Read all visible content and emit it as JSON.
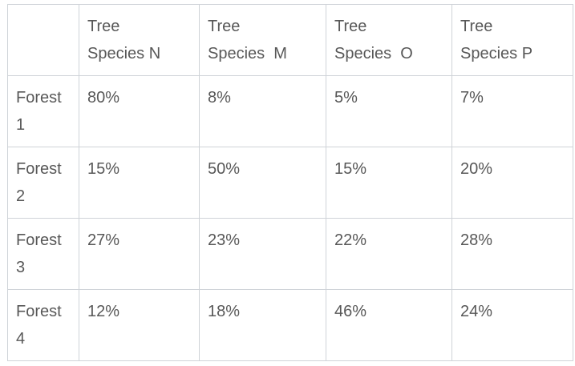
{
  "table": {
    "corner": "",
    "headers": [
      {
        "line1": "Tree",
        "line2": "Species N"
      },
      {
        "line1": "Tree",
        "line2": "Species  M"
      },
      {
        "line1": "Tree",
        "line2": "Species  O"
      },
      {
        "line1": "Tree",
        "line2": "Species P"
      }
    ],
    "rows": [
      {
        "label_line1": "Forest",
        "label_line2": "1",
        "values": [
          "80%",
          "8%",
          "5%",
          "7%"
        ]
      },
      {
        "label_line1": "Forest",
        "label_line2": "2",
        "values": [
          "15%",
          "50%",
          "15%",
          "20%"
        ]
      },
      {
        "label_line1": "Forest",
        "label_line2": "3",
        "values": [
          "27%",
          "23%",
          "22%",
          "28%"
        ]
      },
      {
        "label_line1": "Forest",
        "label_line2": "4",
        "values": [
          "12%",
          "18%",
          "46%",
          "24%"
        ]
      }
    ]
  },
  "colors": {
    "text": "#585858",
    "border": "#cfd3d8",
    "background": "#ffffff"
  }
}
